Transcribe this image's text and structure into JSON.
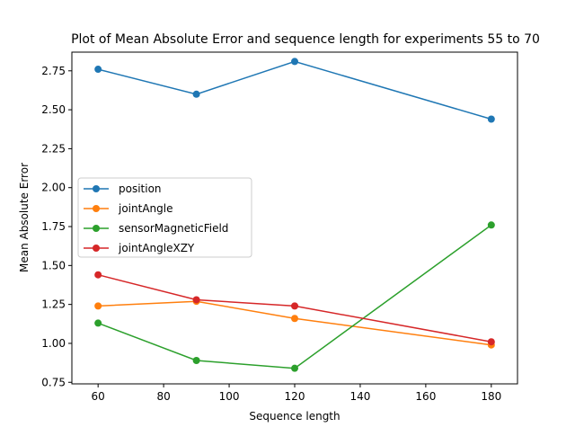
{
  "chart_data": {
    "type": "line",
    "title": "Plot of Mean Absolute Error and sequence length for experiments 55 to 70",
    "xlabel": "Sequence length",
    "ylabel": "Mean Absolute Error",
    "x": [
      60,
      90,
      120,
      180
    ],
    "xlim": [
      52,
      188
    ],
    "ylim": [
      0.74,
      2.87
    ],
    "xticks": [
      60,
      80,
      100,
      120,
      140,
      160,
      180
    ],
    "xtick_labels": [
      "60",
      "80",
      "100",
      "120",
      "140",
      "160",
      "180"
    ],
    "yticks": [
      0.75,
      1.0,
      1.25,
      1.5,
      1.75,
      2.0,
      2.25,
      2.5,
      2.75
    ],
    "ytick_labels": [
      "0.75",
      "1.00",
      "1.25",
      "1.50",
      "1.75",
      "2.00",
      "2.25",
      "2.50",
      "2.75"
    ],
    "grid": false,
    "legend_position": "center-left",
    "series": [
      {
        "name": "position",
        "color": "#1f77b4",
        "values": [
          2.76,
          2.6,
          2.81,
          2.44
        ]
      },
      {
        "name": "jointAngle",
        "color": "#ff7f0e",
        "values": [
          1.24,
          1.27,
          1.16,
          0.99
        ]
      },
      {
        "name": "sensorMagneticField",
        "color": "#2ca02c",
        "values": [
          1.13,
          0.89,
          0.84,
          1.76
        ]
      },
      {
        "name": "jointAngleXZY",
        "color": "#d62728",
        "values": [
          1.44,
          1.28,
          1.24,
          1.01
        ]
      }
    ]
  }
}
